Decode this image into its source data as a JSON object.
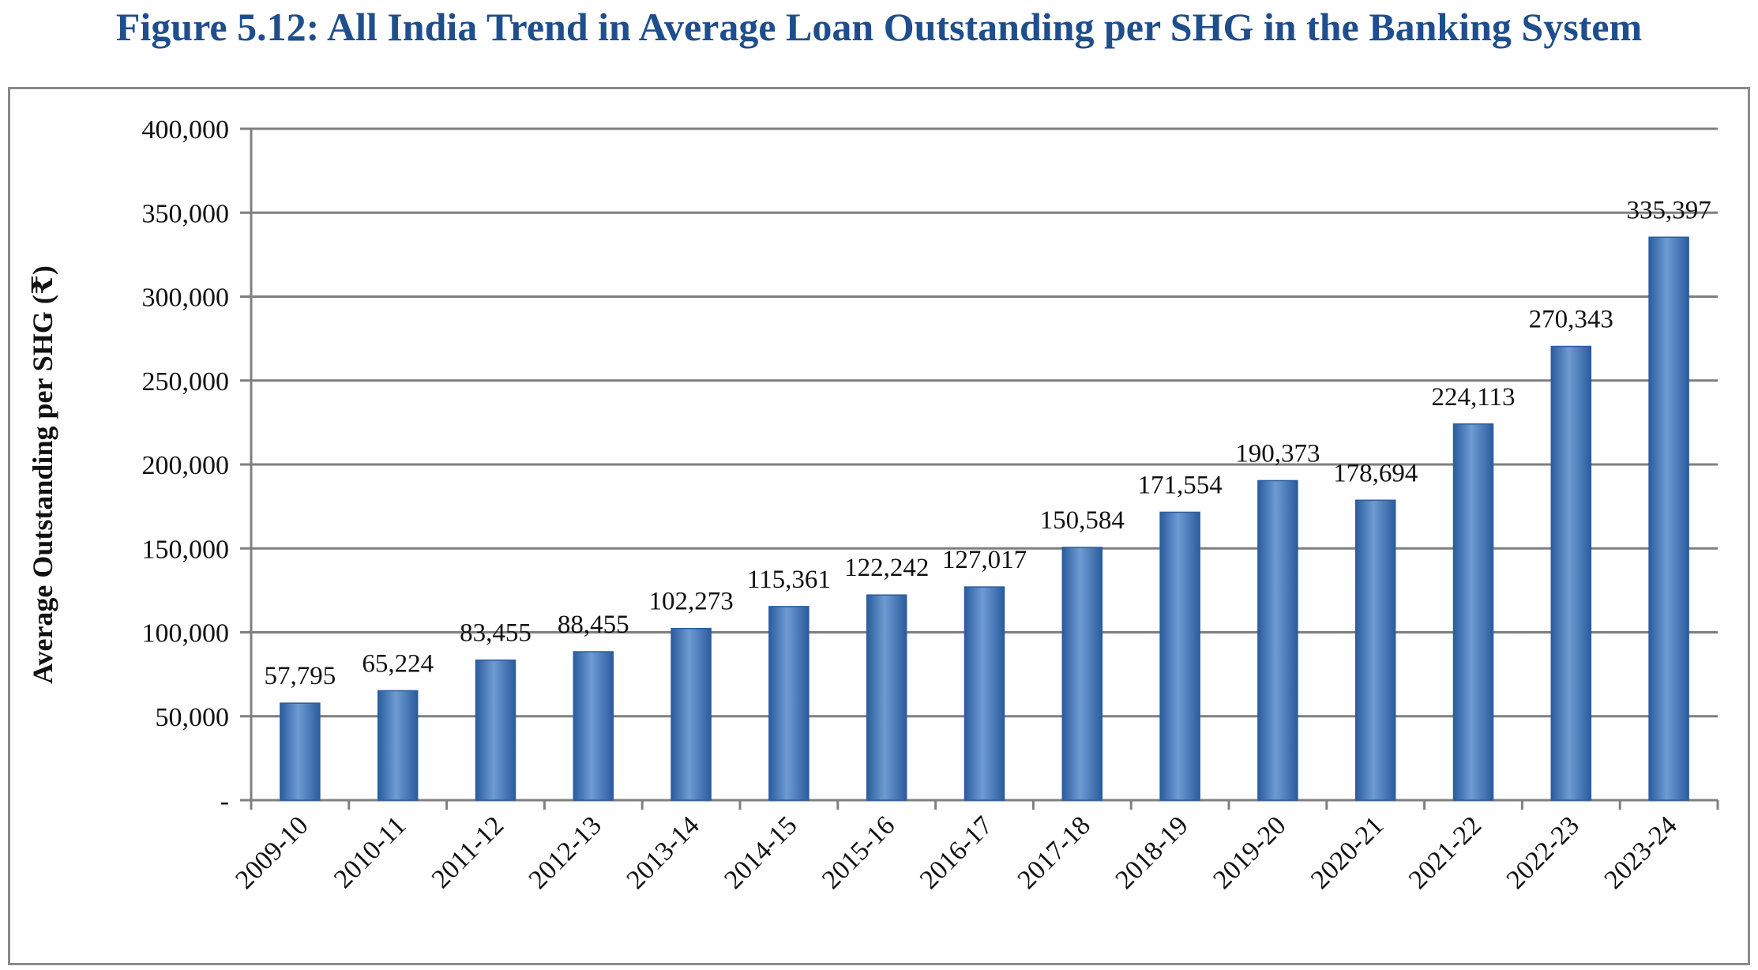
{
  "figure": {
    "title": "Figure 5.12: All India Trend in Average Loan Outstanding per SHG in the Banking System"
  },
  "colors": {
    "title": "#1F4E8C",
    "bar_light": "#6E9BD3",
    "bar_mid": "#4A7FC1",
    "bar_dark": "#2B5C9E",
    "gridline": "#7f7f7f",
    "frame": "#8a8a8a"
  },
  "chart_data": {
    "type": "bar",
    "categories": [
      "2009-10",
      "2010-11",
      "2011-12",
      "2012-13",
      "2013-14",
      "2014-15",
      "2015-16",
      "2016-17",
      "2017-18",
      "2018-19",
      "2019-20",
      "2020-21",
      "2021-22",
      "2022-23",
      "2023-24"
    ],
    "values": [
      57795,
      65224,
      83455,
      88455,
      102273,
      115361,
      122242,
      127017,
      150584,
      171554,
      190373,
      178694,
      224113,
      270343,
      335397
    ],
    "data_labels": [
      "57,795",
      "65,224",
      "83,455",
      "88,455",
      "102,273",
      "115,361",
      "122,242",
      "127,017",
      "150,584",
      "171,554",
      "190,373",
      "178,694",
      "224,113",
      "270,343",
      "335,397"
    ],
    "ylabel": "Average Outstanding per SHG (₹)",
    "xlabel": "",
    "ylim": [
      0,
      400000
    ],
    "yticks": [
      0,
      50000,
      100000,
      150000,
      200000,
      250000,
      300000,
      350000,
      400000
    ],
    "ytick_labels": [
      "-",
      "50,000",
      "100,000",
      "150,000",
      "200,000",
      "250,000",
      "300,000",
      "350,000",
      "400,000"
    ],
    "grid": true,
    "legend": "none"
  }
}
